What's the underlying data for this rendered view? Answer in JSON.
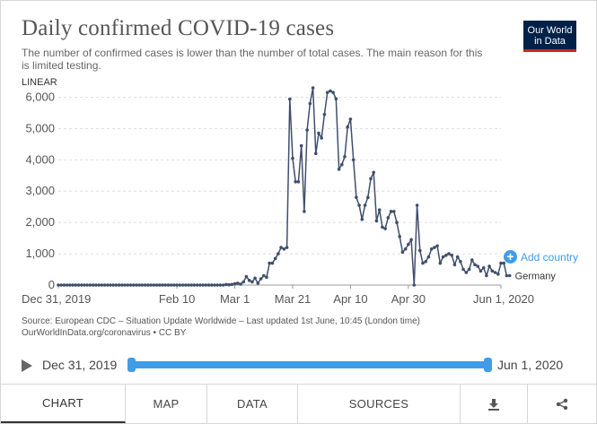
{
  "header": {
    "title": "Daily confirmed COVID-19 cases",
    "subtitle": "The number of confirmed cases is lower than the number of total cases. The main reason for this is limited testing.",
    "logo_line1": "Our World",
    "logo_line2": "in Data"
  },
  "scale_label": "LINEAR",
  "add_country_label": "Add country",
  "source_line1": "Source: European CDC – Situation Update Worldwide – Last updated 1st June, 10:45 (London time)",
  "source_line2": "OurWorldInData.org/coronavirus • CC BY",
  "timeline": {
    "start": "Dec 31, 2019",
    "end": "Jun 1, 2020"
  },
  "tabs": [
    {
      "label": "CHART"
    },
    {
      "label": "MAP"
    },
    {
      "label": "DATA"
    },
    {
      "label": "SOURCES"
    }
  ],
  "colors": {
    "line": "#3f4f6b",
    "accent": "#3f9de8",
    "logo_bg": "#002147",
    "logo_bar": "#ce261e"
  },
  "chart_data": {
    "type": "line",
    "title": "Daily confirmed COVID-19 cases",
    "series": [
      {
        "name": "Germany",
        "x_start": "2019-12-31",
        "x_end": "2020-06-01",
        "values": [
          0,
          0,
          0,
          0,
          0,
          0,
          0,
          0,
          0,
          0,
          0,
          0,
          0,
          0,
          0,
          0,
          0,
          0,
          0,
          0,
          0,
          0,
          0,
          0,
          0,
          0,
          0,
          0,
          0,
          0,
          0,
          0,
          0,
          0,
          0,
          0,
          0,
          0,
          0,
          0,
          0,
          0,
          0,
          0,
          0,
          0,
          0,
          0,
          0,
          0,
          0,
          0,
          0,
          0,
          0,
          0,
          0,
          0,
          16,
          10,
          20,
          40,
          60,
          30,
          100,
          270,
          150,
          100,
          220,
          60,
          200,
          300,
          250,
          700,
          700,
          850,
          1000,
          1200,
          1150,
          1200,
          5940,
          4050,
          3300,
          3300,
          4450,
          2350,
          4950,
          5800,
          6300,
          4200,
          4850,
          4700,
          5450,
          6150,
          6200,
          6150,
          5950,
          3700,
          3850,
          4100,
          5050,
          5300,
          4000,
          2800,
          2550,
          2100,
          2550,
          2800,
          3400,
          3600,
          2050,
          2400,
          1850,
          1800,
          2150,
          2350,
          2350,
          2000,
          1550,
          1050,
          1150,
          1300,
          1450,
          0,
          2550,
          1100,
          700,
          750,
          900,
          1150,
          1200,
          1250,
          700,
          900,
          950,
          1000,
          950,
          650,
          900,
          750,
          500,
          400,
          500,
          800,
          650,
          600,
          450,
          550,
          300,
          600,
          450,
          400,
          350,
          700,
          700,
          300,
          300
        ]
      }
    ],
    "xticks": [
      "Dec 31, 2019",
      "Feb 10",
      "Mar 1",
      "Mar 21",
      "Apr 10",
      "Apr 30",
      "Jun 1, 2020"
    ],
    "xtick_days": [
      0,
      41,
      61,
      81,
      101,
      121,
      153
    ],
    "yticks": [
      0,
      1000,
      2000,
      3000,
      4000,
      5000,
      6000
    ],
    "ytick_labels": [
      "0",
      "1,000",
      "2,000",
      "3,000",
      "4,000",
      "5,000",
      "6,000"
    ],
    "ylim": [
      0,
      6300
    ],
    "xlim": [
      0,
      153
    ],
    "scale": "LINEAR",
    "legend_label": "Germany"
  }
}
